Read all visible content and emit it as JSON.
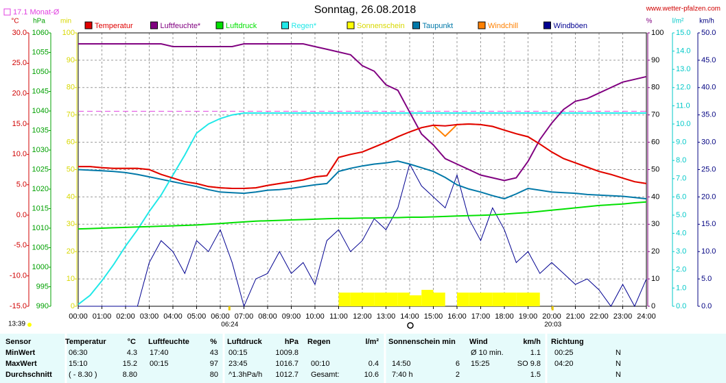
{
  "chart_data": {
    "type": "line",
    "title": "Sonntag, 26.08.2018",
    "source": "www.wetter-pfalzen.com",
    "monthly_avg": {
      "label": "17.1 Monat-Ø",
      "value": 17.1,
      "color": "#e040e0"
    },
    "time_label": "13:39",
    "sun_events": [
      "06:24",
      "20:03"
    ],
    "grid": true,
    "xlim": [
      0,
      24
    ],
    "xticks": [
      {
        "value": 0,
        "label": "00:00"
      },
      {
        "value": 1,
        "label": "01:00"
      },
      {
        "value": 2,
        "label": "02:00"
      },
      {
        "value": 3,
        "label": "03:00"
      },
      {
        "value": 4,
        "label": "04:00"
      },
      {
        "value": 5,
        "label": "05:00"
      },
      {
        "value": 6,
        "label": "06:00"
      },
      {
        "value": 7,
        "label": "07:00"
      },
      {
        "value": 8,
        "label": "08:00"
      },
      {
        "value": 9,
        "label": "09:00"
      },
      {
        "value": 10,
        "label": "10:00"
      },
      {
        "value": 11,
        "label": "11:00"
      },
      {
        "value": 12,
        "label": "12:00"
      },
      {
        "value": 13,
        "label": "13:00"
      },
      {
        "value": 14,
        "label": "14:00"
      },
      {
        "value": 15,
        "label": "15:00"
      },
      {
        "value": 16,
        "label": "16:00"
      },
      {
        "value": 17,
        "label": "17:00"
      },
      {
        "value": 18,
        "label": "18:00"
      },
      {
        "value": 19,
        "label": "19:00"
      },
      {
        "value": 20,
        "label": "20:00"
      },
      {
        "value": 21,
        "label": "21:00"
      },
      {
        "value": 22,
        "label": "22:00"
      },
      {
        "value": 23,
        "label": "23:00"
      },
      {
        "value": 24,
        "label": "24:00"
      }
    ],
    "axes": [
      {
        "name": "°C",
        "color": "#d00000",
        "lim": [
          -15,
          30
        ],
        "ticks": [
          {
            "value": 30,
            "label": "30.0"
          },
          {
            "value": 25,
            "label": "25.0"
          },
          {
            "value": 20,
            "label": "20.0"
          },
          {
            "value": 15,
            "label": "15.0"
          },
          {
            "value": 10,
            "label": "10.0"
          },
          {
            "value": 5,
            "label": "5.0"
          },
          {
            "value": 0,
            "label": "0.0"
          },
          {
            "value": -5,
            "label": "-5.0"
          },
          {
            "value": -10,
            "label": "-10.0"
          },
          {
            "value": -15,
            "label": "-15.0"
          }
        ]
      },
      {
        "name": "hPa",
        "color": "#00a000",
        "lim": [
          990,
          1060
        ],
        "ticks": [
          1060,
          1055,
          1050,
          1045,
          1040,
          1035,
          1030,
          1025,
          1020,
          1015,
          1010,
          1005,
          1000,
          995,
          990
        ]
      },
      {
        "name": "min",
        "color": "#d8d800",
        "lim": [
          0,
          100
        ],
        "ticks": [
          100,
          90,
          80,
          70,
          60,
          50,
          40,
          30,
          20,
          10,
          0
        ]
      },
      {
        "name": "%",
        "color": "#800080",
        "lim": [
          0,
          100
        ],
        "ticks": [
          100,
          90,
          80,
          70,
          60,
          50,
          40,
          30,
          20,
          10,
          0
        ]
      },
      {
        "name": "l/m²",
        "color": "#00c8c8",
        "lim": [
          0,
          15
        ],
        "ticks": [
          {
            "value": 15,
            "label": "15.0"
          },
          {
            "value": 14,
            "label": "14.0"
          },
          {
            "value": 13,
            "label": "13.0"
          },
          {
            "value": 12,
            "label": "12.0"
          },
          {
            "value": 11,
            "label": "11.0"
          },
          {
            "value": 10,
            "label": "10.0"
          },
          {
            "value": 9,
            "label": "9.0"
          },
          {
            "value": 8,
            "label": "8.0"
          },
          {
            "value": 7,
            "label": "7.0"
          },
          {
            "value": 6,
            "label": "6.0"
          },
          {
            "value": 5,
            "label": "5.0"
          },
          {
            "value": 4,
            "label": "4.0"
          },
          {
            "value": 3,
            "label": "3.0"
          },
          {
            "value": 2,
            "label": "2.0"
          },
          {
            "value": 1,
            "label": "1.0"
          },
          {
            "value": 0,
            "label": "0.0"
          }
        ]
      },
      {
        "name": "km/h",
        "color": "#000080",
        "lim": [
          0,
          50
        ],
        "ticks": [
          {
            "value": 50,
            "label": "50.0"
          },
          {
            "value": 45,
            "label": "45.0"
          },
          {
            "value": 40,
            "label": "40.0"
          },
          {
            "value": 35,
            "label": "35.0"
          },
          {
            "value": 30,
            "label": "30.0"
          },
          {
            "value": 25,
            "label": "25.0"
          },
          {
            "value": 20,
            "label": "20.0"
          },
          {
            "value": 15,
            "label": "15.0"
          },
          {
            "value": 10,
            "label": "10.0"
          },
          {
            "value": 5,
            "label": "5.0"
          },
          {
            "value": 0,
            "label": "0.0"
          }
        ]
      }
    ],
    "x": [
      0,
      0.5,
      1,
      1.5,
      2,
      2.5,
      3,
      3.5,
      4,
      4.5,
      5,
      5.5,
      6,
      6.5,
      7,
      7.5,
      8,
      8.5,
      9,
      9.5,
      10,
      10.5,
      11,
      11.5,
      12,
      12.5,
      13,
      13.5,
      14,
      14.5,
      15,
      15.5,
      16,
      16.5,
      17,
      17.5,
      18,
      18.5,
      19,
      19.5,
      20,
      20.5,
      21,
      21.5,
      22,
      22.5,
      23,
      23.5,
      24
    ],
    "series": [
      {
        "name": "Temperatur",
        "color": "#e00000",
        "axis": 0,
        "values": [
          8.0,
          8.0,
          7.8,
          7.7,
          7.7,
          7.7,
          7.5,
          6.7,
          6.1,
          5.5,
          5.2,
          4.7,
          4.5,
          4.4,
          4.4,
          4.5,
          4.9,
          5.2,
          5.5,
          5.8,
          6.3,
          6.5,
          9.5,
          10.0,
          10.4,
          11.2,
          12.0,
          12.9,
          13.7,
          14.4,
          14.8,
          14.7,
          14.9,
          15.0,
          14.9,
          14.6,
          14.0,
          13.4,
          12.9,
          11.7,
          10.4,
          9.3,
          8.6,
          7.9,
          7.2,
          6.7,
          6.1,
          5.5,
          5.2
        ]
      },
      {
        "name": "Luftfeuchte*",
        "color": "#800080",
        "axis": 3,
        "values": [
          96,
          96,
          96,
          96,
          96,
          96,
          96,
          96,
          95,
          95,
          95,
          95,
          95,
          95,
          96,
          96,
          96,
          96,
          96,
          96,
          95,
          94,
          93,
          92,
          88,
          86,
          81,
          79,
          71,
          63,
          59,
          54,
          52,
          50,
          48,
          47,
          46,
          47,
          53,
          61,
          67,
          72,
          75,
          76,
          78,
          80,
          82,
          83,
          84
        ]
      },
      {
        "name": "Luftdruck",
        "color": "#00e000",
        "axis": 1,
        "values": [
          1009.8,
          1009.9,
          1010.0,
          1010.1,
          1010.2,
          1010.3,
          1010.4,
          1010.5,
          1010.6,
          1010.7,
          1010.8,
          1011.0,
          1011.2,
          1011.4,
          1011.6,
          1011.8,
          1011.9,
          1012.0,
          1012.1,
          1012.2,
          1012.3,
          1012.4,
          1012.5,
          1012.5,
          1012.6,
          1012.6,
          1012.7,
          1012.7,
          1012.8,
          1012.8,
          1012.9,
          1013.0,
          1013.1,
          1013.2,
          1013.3,
          1013.4,
          1013.6,
          1013.8,
          1014.0,
          1014.3,
          1014.6,
          1014.9,
          1015.2,
          1015.5,
          1015.8,
          1016.0,
          1016.2,
          1016.5,
          1016.7
        ]
      },
      {
        "name": "Regen*",
        "color": "#20e8e8",
        "axis": 4,
        "values": [
          0.1,
          0.6,
          1.4,
          2.3,
          3.3,
          4.2,
          5.2,
          6.1,
          7.2,
          8.3,
          9.5,
          10.0,
          10.3,
          10.5,
          10.6,
          10.6,
          10.6,
          10.6,
          10.6,
          10.6,
          10.6,
          10.6,
          10.6,
          10.6,
          10.6,
          10.6,
          10.6,
          10.6,
          10.6,
          10.6,
          10.6,
          10.6,
          10.6,
          10.6,
          10.6,
          10.6,
          10.6,
          10.6,
          10.6,
          10.6,
          10.6,
          10.6,
          10.6,
          10.6,
          10.6,
          10.6,
          10.6,
          10.6,
          10.6
        ]
      },
      {
        "name": "Sonnenschein",
        "color": "#ffff00",
        "axis": 2,
        "style": "bar",
        "values": [
          0,
          0,
          0,
          0,
          0,
          0,
          0,
          0,
          0,
          0,
          0,
          0,
          0,
          0,
          0,
          0,
          0,
          0,
          0,
          0,
          0,
          0,
          5,
          5,
          5,
          5,
          5,
          5,
          4,
          6,
          5,
          0,
          5,
          5,
          5,
          5,
          5,
          5,
          5,
          0,
          0,
          0,
          0,
          0,
          0,
          0,
          0,
          0,
          0
        ]
      },
      {
        "name": "Taupunkt",
        "color": "#0078a8",
        "axis": 0,
        "values": [
          7.5,
          7.4,
          7.3,
          7.2,
          7.0,
          6.7,
          6.3,
          5.9,
          5.5,
          5.1,
          4.7,
          4.2,
          3.8,
          3.7,
          3.6,
          3.8,
          4.1,
          4.2,
          4.4,
          4.7,
          5.0,
          5.2,
          7.2,
          7.7,
          8.1,
          8.4,
          8.6,
          8.9,
          8.4,
          7.8,
          7.2,
          6.2,
          5.0,
          4.3,
          3.8,
          3.2,
          2.7,
          3.5,
          4.4,
          4.1,
          3.8,
          3.7,
          3.6,
          3.4,
          3.3,
          3.2,
          3.1,
          2.9,
          2.7
        ]
      },
      {
        "name": "Windchill",
        "color": "#ff8000",
        "axis": 0,
        "values": [
          8.0,
          8.0,
          7.8,
          7.7,
          7.7,
          7.7,
          7.5,
          6.7,
          6.1,
          5.5,
          5.2,
          4.7,
          4.5,
          4.4,
          4.4,
          4.5,
          4.9,
          5.2,
          5.5,
          5.8,
          6.3,
          6.5,
          9.5,
          10.0,
          10.4,
          11.2,
          12.0,
          12.9,
          13.7,
          14.4,
          14.8,
          13.0,
          14.9,
          15.0,
          14.9,
          14.6,
          14.0,
          13.4,
          12.9,
          11.7,
          10.4,
          9.3,
          8.6,
          7.9,
          7.2,
          6.7,
          6.1,
          5.5,
          5.2
        ]
      },
      {
        "name": "Windböen",
        "color": "#000090",
        "axis": 5,
        "values": [
          0,
          0,
          0,
          0,
          0,
          0,
          8,
          12,
          10,
          6,
          12,
          10,
          14,
          8,
          0,
          5,
          6,
          10,
          6,
          8,
          4,
          12,
          14,
          10,
          12,
          16,
          14,
          18,
          26,
          22,
          20,
          18,
          24,
          16,
          12,
          18,
          14,
          8,
          10,
          6,
          8,
          6,
          4,
          5,
          3,
          0,
          4,
          0,
          5
        ]
      }
    ]
  },
  "table": {
    "header": [
      "Sensor",
      "Temperatur",
      "°C",
      "Luftfeuchte",
      "%",
      "Luftdruck",
      "hPa",
      "Regen",
      "l/m²",
      "Sonnenschein min",
      "Wind",
      "km/h",
      "Richtung"
    ],
    "rows": [
      {
        "label": "MinWert",
        "cells": [
          "06:30",
          "4.3",
          "17:40",
          "43",
          "00:15",
          "1009.8",
          null,
          null,
          null,
          null,
          "Ø 10 min.",
          "1.1",
          "00:25",
          "N"
        ]
      },
      {
        "label": "MaxWert",
        "cells": [
          "15:10",
          "15.2",
          "00:15",
          "97",
          "23:45",
          "1016.7",
          "00:10",
          "0.4",
          "14:50",
          "6",
          "15:25",
          "SO 9.8",
          "04:20",
          "N"
        ]
      },
      {
        "label": "Durchschnitt",
        "cells": [
          "( - 8.30 )",
          "8.80",
          null,
          "80",
          "^1.3hPa/h",
          "1012.7",
          "Gesamt:",
          "10.6",
          "7:40 h",
          "2",
          null,
          "1.5",
          null,
          "N"
        ]
      }
    ]
  }
}
